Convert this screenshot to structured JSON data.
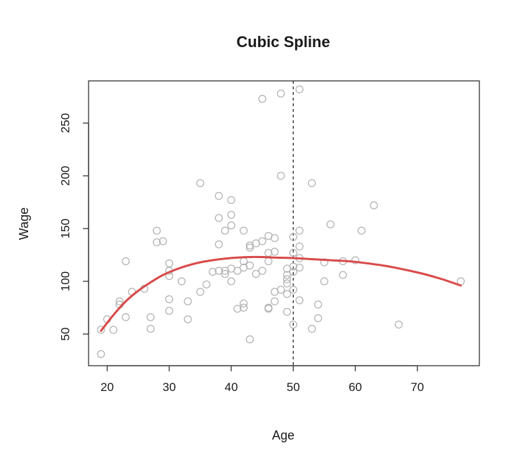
{
  "chart_data": {
    "type": "scatter",
    "title": "Cubic Spline",
    "xlabel": "Age",
    "ylabel": "Wage",
    "xlim": [
      17,
      80
    ],
    "ylim": [
      20,
      290
    ],
    "xticks": [
      20,
      30,
      40,
      50,
      60,
      70
    ],
    "yticks": [
      50,
      100,
      150,
      200,
      250
    ],
    "grid": false,
    "colors": {
      "points": "#b3b3b3",
      "spline": "#d94a4a",
      "knot": "#333333",
      "axes": "#333333"
    },
    "knot": {
      "x": 50,
      "style": "dashed"
    },
    "points": [
      [
        19,
        31
      ],
      [
        19,
        54
      ],
      [
        20,
        64
      ],
      [
        21,
        54
      ],
      [
        22,
        78
      ],
      [
        22,
        81
      ],
      [
        23,
        66
      ],
      [
        23,
        119
      ],
      [
        24,
        90
      ],
      [
        26,
        93
      ],
      [
        27,
        55
      ],
      [
        27,
        66
      ],
      [
        28,
        137
      ],
      [
        28,
        148
      ],
      [
        29,
        138
      ],
      [
        30,
        72
      ],
      [
        30,
        83
      ],
      [
        30,
        105
      ],
      [
        30,
        110
      ],
      [
        30,
        117
      ],
      [
        32,
        100
      ],
      [
        33,
        64
      ],
      [
        33,
        81
      ],
      [
        35,
        90
      ],
      [
        35,
        193
      ],
      [
        36,
        97
      ],
      [
        37,
        109
      ],
      [
        38,
        110
      ],
      [
        38,
        135
      ],
      [
        38,
        160
      ],
      [
        38,
        181
      ],
      [
        39,
        107
      ],
      [
        39,
        110
      ],
      [
        39,
        148
      ],
      [
        40,
        100
      ],
      [
        40,
        112
      ],
      [
        40,
        153
      ],
      [
        40,
        163
      ],
      [
        40,
        177
      ],
      [
        41,
        74
      ],
      [
        41,
        110
      ],
      [
        42,
        75
      ],
      [
        42,
        79
      ],
      [
        42,
        113
      ],
      [
        42,
        119
      ],
      [
        42,
        148
      ],
      [
        43,
        45
      ],
      [
        43,
        115
      ],
      [
        43,
        132
      ],
      [
        43,
        134
      ],
      [
        44,
        107
      ],
      [
        44,
        136
      ],
      [
        45,
        110
      ],
      [
        45,
        138
      ],
      [
        45,
        273
      ],
      [
        46,
        74
      ],
      [
        46,
        75
      ],
      [
        46,
        119
      ],
      [
        46,
        127
      ],
      [
        46,
        143
      ],
      [
        47,
        81
      ],
      [
        47,
        90
      ],
      [
        47,
        128
      ],
      [
        47,
        141
      ],
      [
        48,
        92
      ],
      [
        48,
        200
      ],
      [
        48,
        278
      ],
      [
        49,
        71
      ],
      [
        49,
        88
      ],
      [
        49,
        98
      ],
      [
        49,
        102
      ],
      [
        49,
        106
      ],
      [
        49,
        112
      ],
      [
        50,
        59
      ],
      [
        50,
        92
      ],
      [
        50,
        109
      ],
      [
        50,
        114
      ],
      [
        50,
        127
      ],
      [
        50,
        142
      ],
      [
        51,
        82
      ],
      [
        51,
        113
      ],
      [
        51,
        122
      ],
      [
        51,
        133
      ],
      [
        51,
        148
      ],
      [
        51,
        282
      ],
      [
        53,
        55
      ],
      [
        53,
        193
      ],
      [
        54,
        65
      ],
      [
        54,
        78
      ],
      [
        55,
        100
      ],
      [
        55,
        118
      ],
      [
        56,
        154
      ],
      [
        58,
        106
      ],
      [
        58,
        119
      ],
      [
        60,
        120
      ],
      [
        61,
        148
      ],
      [
        63,
        172
      ],
      [
        67,
        59
      ],
      [
        77,
        100
      ]
    ],
    "series": [
      {
        "type": "spline",
        "x": [
          19,
          21,
          23,
          25,
          27,
          29,
          31,
          33,
          35,
          37,
          39,
          41,
          43,
          45,
          47,
          50,
          53,
          56,
          59,
          62,
          65,
          68,
          71,
          74,
          77
        ],
        "y": [
          53,
          68,
          81,
          91,
          99,
          106,
          111,
          115,
          118,
          120,
          121.5,
          122.5,
          123,
          123,
          122.5,
          122,
          121,
          120,
          119,
          117,
          114.5,
          111,
          107,
          102,
          96
        ]
      }
    ]
  }
}
